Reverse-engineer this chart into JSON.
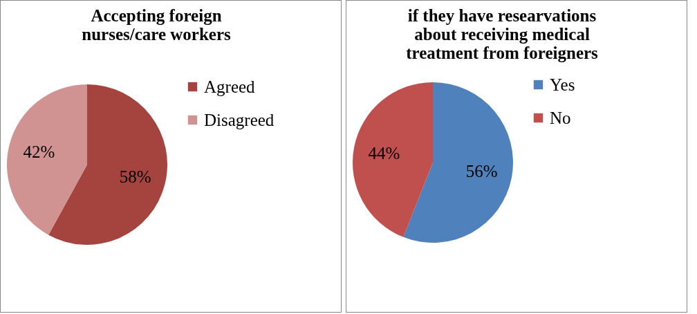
{
  "chart_data": [
    {
      "type": "pie",
      "title": "Accepting foreign\nnurses/care workers",
      "categories": [
        "Agreed",
        "Disagreed"
      ],
      "values": [
        58,
        42
      ],
      "value_labels": [
        "58%",
        "42%"
      ],
      "colors": [
        "#a5433f",
        "#d09391"
      ],
      "legend": "right"
    },
    {
      "type": "pie",
      "title": "if they have researvations\nabout receiving medical\ntreatment from foreigners",
      "categories": [
        "Yes",
        "No"
      ],
      "values": [
        56,
        44
      ],
      "value_labels": [
        "56%",
        "44%"
      ],
      "colors": [
        "#4f81bd",
        "#c0504d"
      ],
      "legend": "right"
    }
  ]
}
